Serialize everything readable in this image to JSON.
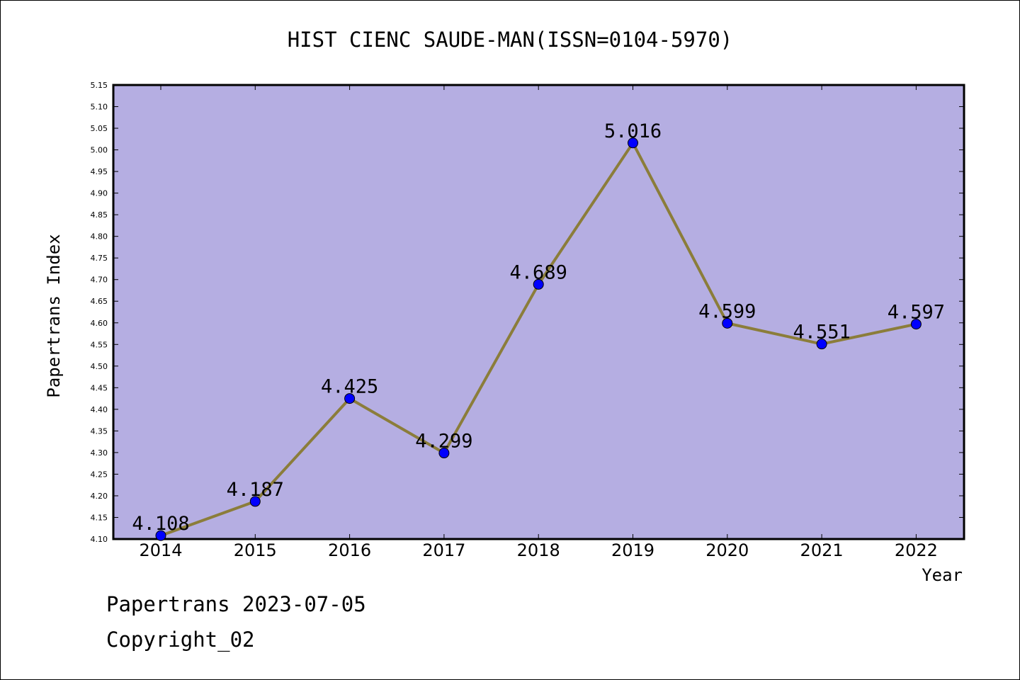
{
  "chart_data": {
    "type": "line",
    "title": "HIST CIENC SAUDE-MAN(ISSN=0104-5970)",
    "xlabel": "Year",
    "ylabel": "Papertrans Index",
    "categories": [
      "2014",
      "2015",
      "2016",
      "2017",
      "2018",
      "2019",
      "2020",
      "2021",
      "2022"
    ],
    "series": [
      {
        "values": [
          4.108,
          4.187,
          4.425,
          4.299,
          4.689,
          5.016,
          4.599,
          4.551,
          4.597
        ],
        "data_labels": [
          "4.108",
          "4.187",
          "4.425",
          "4.299",
          "4.689",
          "5.016",
          "4.599",
          "4.551",
          "4.597"
        ]
      }
    ],
    "ylim": [
      4.1,
      5.15
    ],
    "yticks": [
      "4.10",
      "4.15",
      "4.20",
      "4.25",
      "4.30",
      "4.35",
      "4.40",
      "4.45",
      "4.50",
      "4.55",
      "4.60",
      "4.65",
      "4.70",
      "4.75",
      "4.80",
      "4.85",
      "4.90",
      "4.95",
      "5.00",
      "5.05",
      "5.10",
      "5.15"
    ],
    "grid": false,
    "colors": {
      "plot_background": "#b5aee2",
      "line": "#8b7d3a",
      "marker": "#0000ff"
    }
  },
  "footer": {
    "line1": "Papertrans 2023-07-05",
    "line2": "Copyright_02"
  }
}
